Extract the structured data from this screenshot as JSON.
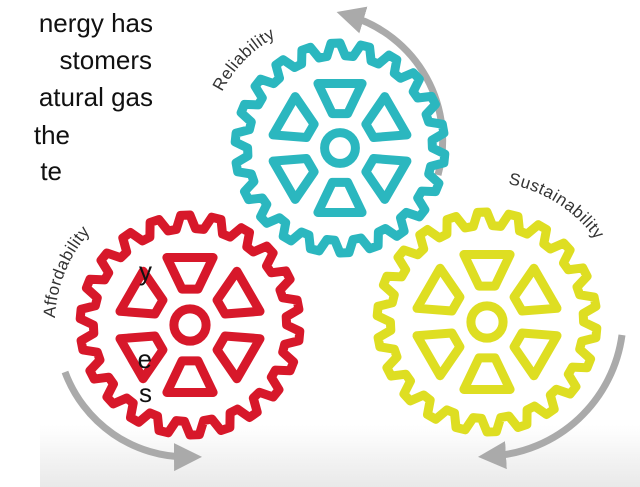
{
  "left_text": {
    "lines": [
      "nergy has",
      "stomers",
      "atural gas",
      "the",
      "te",
      "y",
      "e",
      "s"
    ]
  },
  "gears": [
    {
      "label": "Reliability"
    },
    {
      "label": "Affordability"
    },
    {
      "label": "Sustainability"
    }
  ]
}
